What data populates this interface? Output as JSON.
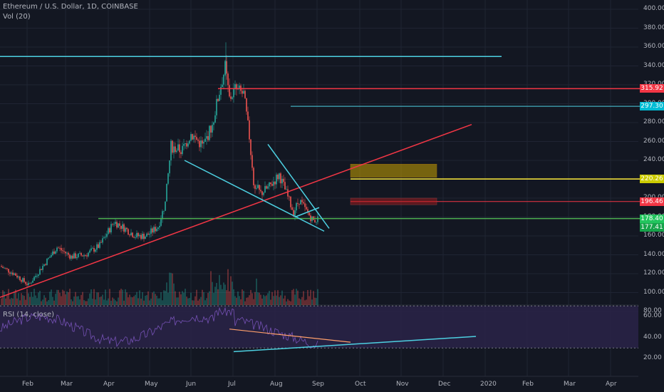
{
  "legend": {
    "symbol_line": "Ethereum / U.S. Dollar, 1D, COINBASE",
    "volume_line": "Vol (20)",
    "rsi_line": "RSI (14, close)"
  },
  "price_axis": {
    "ticks": [
      "400.00",
      "380.00",
      "360.00",
      "340.00",
      "320.00",
      "300.00",
      "280.00",
      "260.00",
      "240.00",
      "220.00",
      "200.00",
      "180.00",
      "160.00",
      "140.00",
      "120.00",
      "100.00",
      "80.00"
    ],
    "values": [
      400,
      380,
      360,
      340,
      320,
      300,
      280,
      260,
      240,
      220,
      200,
      180,
      160,
      140,
      120,
      100,
      80
    ]
  },
  "rsi_axis": {
    "ticks": [
      "60.00",
      "40.00",
      "20.00"
    ],
    "values": [
      60,
      40,
      20
    ]
  },
  "time_axis": {
    "labels": [
      "Feb",
      "Mar",
      "Apr",
      "May",
      "Jun",
      "Jul",
      "Aug",
      "Sep",
      "Oct",
      "Nov",
      "Dec",
      "2020",
      "Feb",
      "Mar",
      "Apr"
    ]
  },
  "price_badges": [
    {
      "label": "315.92",
      "value": 315.92,
      "color": "#f23645"
    },
    {
      "label": "297.30",
      "value": 297.3,
      "color": "#00bcd4"
    },
    {
      "label": "220.26",
      "value": 220.26,
      "color": "#cccc00"
    },
    {
      "label": "196.46",
      "value": 196.46,
      "color": "#f23645"
    },
    {
      "label": "178.40",
      "value": 178.4,
      "color": "#22c55e"
    },
    {
      "label": "177.41",
      "value": 177.41,
      "color": "#16a34a"
    }
  ],
  "colors": {
    "background": "#131722",
    "up_candle": "#26a69a",
    "down_candle": "#ef5350",
    "rsi_line": "#7e57c2",
    "rsi_band": "#2a2348",
    "cyan_line": "#4dd0e1",
    "red_line": "#f23645",
    "yellow_line": "#ffeb3b",
    "green_line": "#4caf50"
  }
}
